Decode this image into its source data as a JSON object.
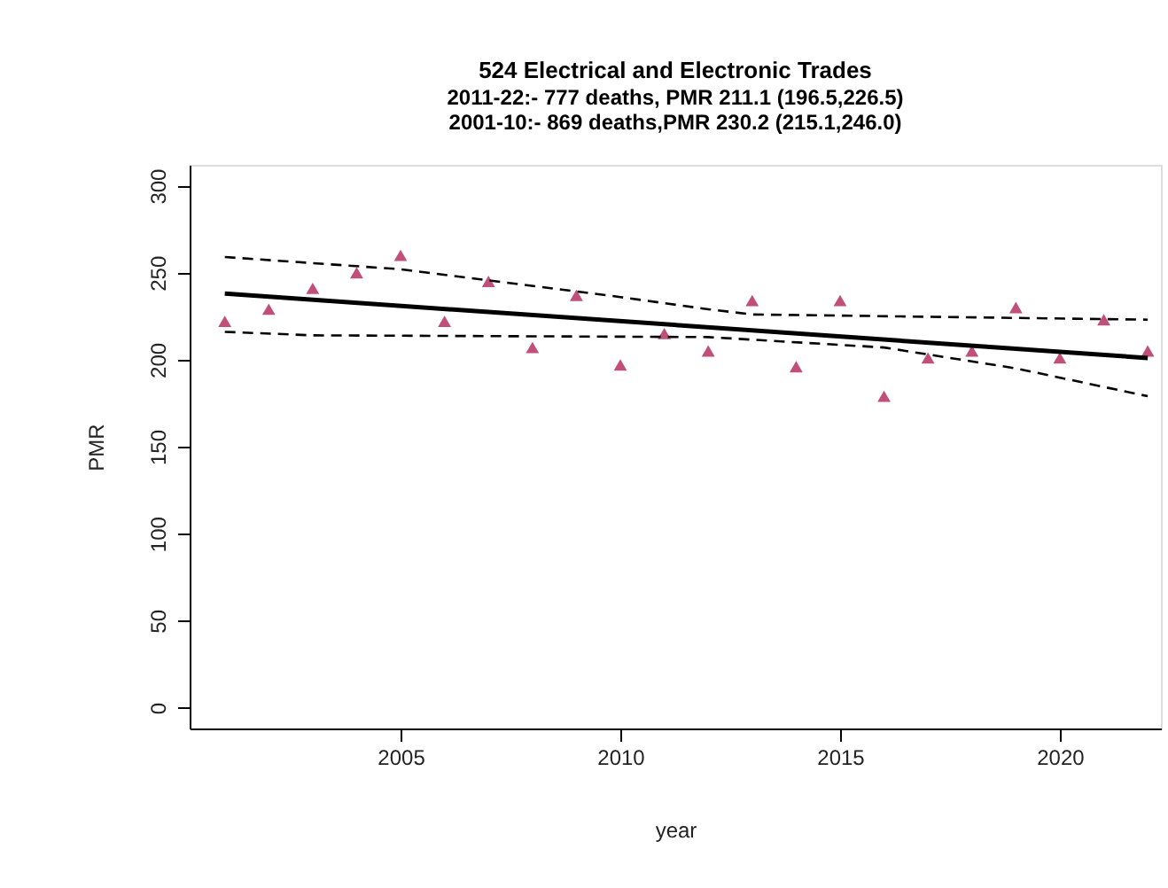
{
  "chart_data": {
    "type": "scatter",
    "title": "524 Electrical and Electronic Trades",
    "subtitle": "2011-22:- 777 deaths, PMR 211.1 (196.5,226.5)\n2001-10:- 869 deaths,PMR 230.2 (215.1,246.0)",
    "xlabel": "year",
    "ylabel": "PMR",
    "grid": false,
    "xlim": [
      2000.2,
      2022.3
    ],
    "xticks": [
      2005,
      2010,
      2015,
      2020
    ],
    "ylim": [
      -12,
      312
    ],
    "yticks": [
      0,
      50,
      100,
      150,
      200,
      250,
      300
    ],
    "series": [
      {
        "color": "#c0507a",
        "marker": "triangle",
        "x": [
          2001,
          2002,
          2003,
          2004,
          2005,
          2006,
          2007,
          2008,
          2009,
          2010,
          2011,
          2012,
          2013,
          2014,
          2015,
          2016,
          2017,
          2018,
          2019,
          2020,
          2021,
          2022
        ],
        "values": [
          222,
          229,
          241,
          250,
          260,
          222,
          245,
          207,
          237,
          197,
          215,
          205,
          234,
          196,
          234,
          179,
          201,
          205,
          230,
          201,
          223,
          205
        ]
      },
      {
        "type": "line",
        "color": "#000000",
        "line_style": "solid",
        "marker": "none",
        "x": [
          2001,
          2022
        ],
        "values": [
          238,
          201
        ]
      },
      {
        "type": "line",
        "color": "#000000",
        "line_style": "dashed",
        "marker": "none",
        "x": [
          2001,
          2005,
          2010,
          2012,
          2013,
          2022
        ],
        "values": [
          259,
          252,
          236,
          229,
          226,
          223
        ]
      },
      {
        "type": "line",
        "color": "#000000",
        "line_style": "dashed",
        "marker": "none",
        "x": [
          2001,
          2003,
          2012,
          2016,
          2019,
          2022
        ],
        "values": [
          216,
          214,
          213,
          207,
          195,
          179
        ]
      }
    ]
  }
}
